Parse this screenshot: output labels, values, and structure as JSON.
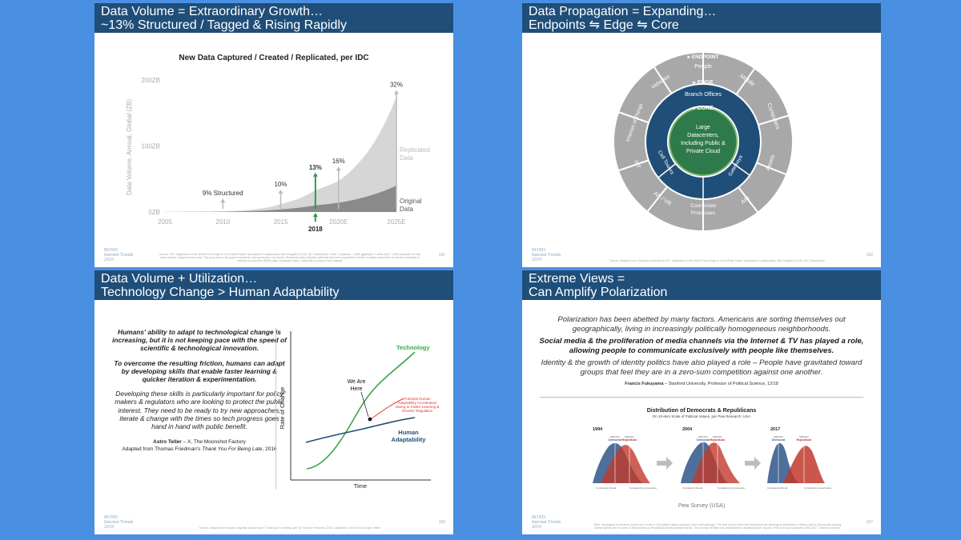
{
  "slide1": {
    "title_line1": "Data Volume = Extraordinary Growth…",
    "title_line2": "~13% Structured / Tagged & Rising Rapidly",
    "chart_title": "New Data Captured / Created / Replicated, per IDC",
    "brand": "BOND",
    "brand_sub": "Internet Trends",
    "brand_year": "2019",
    "page_number": "191",
    "source_text": "Source: IDC 'Digitization of the World From Edge to Core White Paper' developed in collaboration with Seagate (11/18), IDC DataSphere. Note: 1 petabyte = 1MM gigabytes, 1 zetta byte = 1MM petabytes of new data created / captured each year. The grey area in the graph represents data generated, not stored. Structured data indicates data that has been organized so that it is easily searchable & includes metadata & machine-to-machine (M2M) data. Replicated data = data that is a copy of the original.",
    "chart_data": {
      "type": "area",
      "title": "New Data Captured / Created / Replicated, per IDC",
      "ylabel": "Data Volume, Annual, Global (ZB)",
      "yticks": [
        "0ZB",
        "100ZB",
        "200ZB"
      ],
      "ylim": [
        0,
        200
      ],
      "xticks": [
        "2005",
        "2010",
        "2015",
        "2020E",
        "2025E"
      ],
      "x": [
        2005,
        2010,
        2015,
        2018,
        2020,
        2025
      ],
      "series": [
        {
          "name": "Replicated Data",
          "values": [
            0.1,
            1,
            12,
            33,
            47,
            175
          ]
        },
        {
          "name": "Original Data",
          "values": [
            0.1,
            0.5,
            4,
            10,
            14,
            40
          ]
        }
      ],
      "annotations": [
        {
          "label": "9% Structured",
          "x": 2010
        },
        {
          "label": "10%",
          "x": 2015
        },
        {
          "label": "13%",
          "x": 2018,
          "highlight_label": "2018"
        },
        {
          "label": "16%",
          "x": 2020
        },
        {
          "label": "32%",
          "x": 2025
        }
      ],
      "highlight_color": "#2e9e3e",
      "grid": false
    }
  },
  "slide2": {
    "title_line1": "Data Propagation = Expanding…",
    "title_line2": "Endpoints ⇋ Edge ⇋ Core",
    "endpoint_label": "ENDPOINT",
    "edge_label": "EDGE",
    "core_label": "CORE",
    "core_text": [
      "Large",
      "Datacenters,",
      "Including Public &",
      "Private Cloud"
    ],
    "edge_items": [
      "Branch Offices",
      "Gateways",
      "Connected",
      "Processes",
      "Cell Towers"
    ],
    "endpoint_items": [
      "People",
      "Mobile",
      "Computers",
      "Assets",
      "API",
      "AR / VR",
      "IoT",
      "Internet of Things",
      "Vehicles"
    ],
    "brand": "BOND",
    "brand_sub": "Internet Trends",
    "brand_year": "2019",
    "page_number": "192",
    "source_text": "Source: Adapted from Graphics presented in IDC 'Digitization of the World From Edge to Core White Paper' developed in collaboration with Seagate (11/18), IDC DataSphere."
  },
  "slide3": {
    "title_line1": "Data Volume + Utilization…",
    "title_line2": "Technology Change > Human Adaptability",
    "para1": "Humans' ability to adapt to technological change is increasing, but it is not keeping pace with the speed of scientific & technological innovation.",
    "para2": "To overcome the resulting friction, humans can adapt by developing skills that enable faster learning & quicker iteration & experimentation.",
    "para3": "Developing these skills is particularly important for policy makers & regulators who are looking to protect the public interest. They need to be ready to try new approaches, iterate & change with the times so tech progress goes hand in hand with public benefit.",
    "author": "Astro Teller",
    "author_role": " – X, The Moonshot Factory",
    "adapted": "Adapted from Thomas Friedman's ",
    "book": "Thank You For Being Late",
    "year": ", 2016",
    "chart_ylabel": "Rate of Change",
    "chart_xlabel": "Time",
    "technology_label": "Technology",
    "human_label1": "Human",
    "human_label2": "Adaptability",
    "we_are_here1": "We Are",
    "we_are_here2": "Here",
    "potential1": "Potential Human",
    "potential2": "Adaptability Acceleration",
    "potential3": "Owing to Faster Learning &",
    "potential4": "Smarter Regulation",
    "tech_color": "#3aa64a",
    "human_color": "#1f4e79",
    "potential_color": "#e0392b",
    "brand": "BOND",
    "brand_sub": "Internet Trends",
    "brand_year": "2019",
    "page_number": "193",
    "source_text": "Source: Adapted from quotes originally appearing in 'Thank you For Being Late' by Thomas Friedman, 2016. Updated in June 2019 by Astro Teller."
  },
  "slide4": {
    "title_line1": "Extreme Views =",
    "title_line2": "Can Amplify Polarization",
    "para1": "Polarization has been abetted by many factors. Americans are sorting themselves out geographically, living in increasingly politically homogeneous neighborhoods.",
    "para2": "Social media & the proliferation of media channels via the Internet & TV has played a role, allowing people to communicate exclusively with people like themselves.",
    "para3": "Identity & the growth of identity politics have also played a role – People have gravitated toward groups that feel they are in a zero-sum competition against one another.",
    "attribution_name": "Francis Fukuyama",
    "attribution_rest": " – Stanford University, Professor of Political Science, 12/18",
    "chart_title": "Distribution of Democrats & Republicans",
    "chart_subtitle": "On 10-item Scale of Political Values, per Pew Research, USA",
    "years": [
      "1994",
      "2004",
      "2017"
    ],
    "median_dem": "MEDIAN",
    "democrat": "Democrat",
    "median_rep": "MEDIAN",
    "republican": "Republican",
    "consistently_liberal": "Consistently liberal",
    "consistently_conservative": "Consistently conservative",
    "pew_label": "Pew Survey (USA)",
    "dem_color": "#3b5f8f",
    "rep_color": "#c0392b",
    "brand": "BOND",
    "brand_sub": "Internet Trends",
    "brand_year": "2019",
    "page_number": "197",
    "source_text": "Note: Ideological consistency based on a scale of 10 political values questions (see methodology). The blue area in this chart represents the ideological distribution of Democrats & Democratic-leaning independents; the red area of Republicans & Republican-leaning independents. The overlap of these two distributions is shaded purple. Source: Pew Surveys conducted 1994-2017. Stanford release."
  }
}
